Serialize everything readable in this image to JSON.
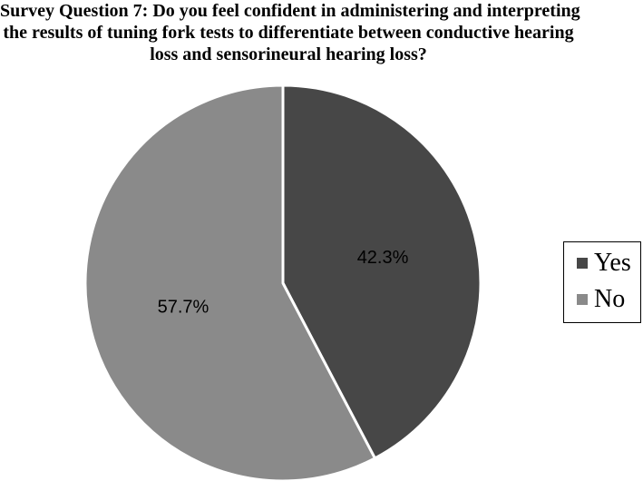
{
  "chart_data": {
    "type": "pie",
    "title_lines": [
      "Survey Question 7: Do you feel confident in administering and interpreting",
      "the results of tuning fork tests to differentiate between conductive hearing",
      "loss and sensorineural hearing loss?"
    ],
    "slices": [
      {
        "name": "Yes",
        "value": 42.3,
        "label": "42.3%",
        "color": "#474747"
      },
      {
        "name": "No",
        "value": 57.7,
        "label": "57.7%",
        "color": "#8a8a8a"
      }
    ],
    "start_angle": "12 o'clock",
    "direction": "clockwise",
    "legend_position": "right"
  }
}
